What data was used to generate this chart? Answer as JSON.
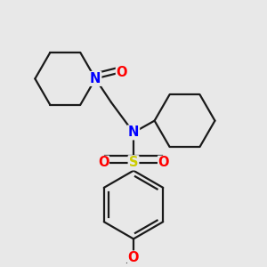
{
  "bg_color": "#e8e8e8",
  "bond_color": "#1a1a1a",
  "N_color": "#0000ff",
  "O_color": "#ff0000",
  "S_color": "#cccc00",
  "line_width": 1.6,
  "font_size": 10.5,
  "xlim": [
    0.0,
    1.0
  ],
  "ylim": [
    0.0,
    1.0
  ]
}
